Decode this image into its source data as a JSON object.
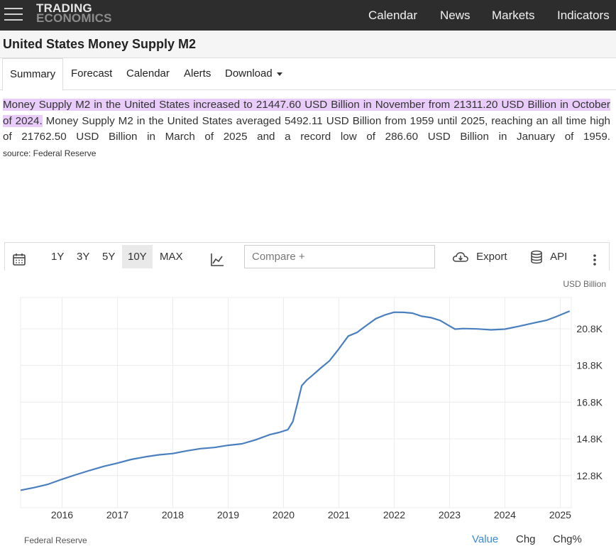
{
  "header": {
    "logo_line1": "TRADING",
    "logo_line2": "ECONOMICS",
    "nav": [
      "Calendar",
      "News",
      "Markets",
      "Indicators"
    ]
  },
  "page": {
    "title": "United States Money Supply M2"
  },
  "tabs": [
    {
      "label": "Summary",
      "active": true
    },
    {
      "label": "Forecast"
    },
    {
      "label": "Calendar"
    },
    {
      "label": "Alerts"
    },
    {
      "label": "Download"
    }
  ],
  "summary": {
    "highlight": "Money Supply M2 in the United States increased to 21447.60 USD Billion in November from 21311.20 USD Billion in October of 2024.",
    "rest": " Money Supply M2 in the United States averaged 5492.11 USD Billion from 1959 until 2025, reaching an all time high of 21762.50 USD Billion in March of 2025 and a record low of 286.60 USD Billion in January of 1959.",
    "source": "source: Federal Reserve"
  },
  "toolbar": {
    "ranges": [
      "1Y",
      "3Y",
      "5Y",
      "10Y",
      "MAX"
    ],
    "active_range": "10Y",
    "compare_placeholder": "Compare +",
    "export_label": "Export",
    "api_label": "API",
    "icons": [
      "calendar-icon",
      "line-chart-icon",
      "download-cloud-icon",
      "database-icon",
      "more-vertical-icon"
    ]
  },
  "chart_data": {
    "type": "line",
    "unit_label": "USD Billion",
    "source_label": "Federal Reserve",
    "color": "#4a7fbf",
    "x_ticks": [
      "2016",
      "2017",
      "2018",
      "2019",
      "2020",
      "2021",
      "2022",
      "2023",
      "2024",
      "2025"
    ],
    "y_ticks": [
      "12.8K",
      "14.8K",
      "16.8K",
      "18.8K",
      "20.8K"
    ],
    "y_tick_values": [
      12800,
      14800,
      16800,
      18800,
      20800
    ],
    "xlim": [
      2015.25,
      2025.2
    ],
    "ylim": [
      11050,
      22500
    ],
    "grid": true,
    "series": [
      {
        "x": [
          2015.25,
          2015.5,
          2015.75,
          2016.0,
          2016.25,
          2016.5,
          2016.75,
          2017.0,
          2017.25,
          2017.5,
          2017.75,
          2018.0,
          2018.25,
          2018.5,
          2018.75,
          2019.0,
          2019.25,
          2019.5,
          2019.75,
          2019.92,
          2020.08,
          2020.17,
          2020.25,
          2020.33,
          2020.42,
          2020.5,
          2020.67,
          2020.83,
          2021.0,
          2021.17,
          2021.33,
          2021.5,
          2021.67,
          2021.83,
          2022.0,
          2022.17,
          2022.33,
          2022.5,
          2022.67,
          2022.83,
          2023.0,
          2023.1,
          2023.25,
          2023.5,
          2023.75,
          2024.0,
          2024.25,
          2024.5,
          2024.75,
          2024.92,
          2025.17
        ],
        "y": [
          12000,
          12150,
          12330,
          12600,
          12850,
          13080,
          13300,
          13480,
          13680,
          13820,
          13930,
          14000,
          14150,
          14270,
          14330,
          14450,
          14530,
          14750,
          15030,
          15150,
          15300,
          15750,
          16700,
          17700,
          18000,
          18200,
          18650,
          19050,
          19700,
          20400,
          20600,
          20980,
          21350,
          21550,
          21700,
          21690,
          21650,
          21480,
          21400,
          21250,
          20950,
          20780,
          20810,
          20790,
          20740,
          20780,
          20930,
          21100,
          21260,
          21450,
          21762.5
        ]
      }
    ]
  },
  "footer_tabs": [
    {
      "label": "Value",
      "active": true
    },
    {
      "label": "Chg"
    },
    {
      "label": "Chg%"
    }
  ]
}
